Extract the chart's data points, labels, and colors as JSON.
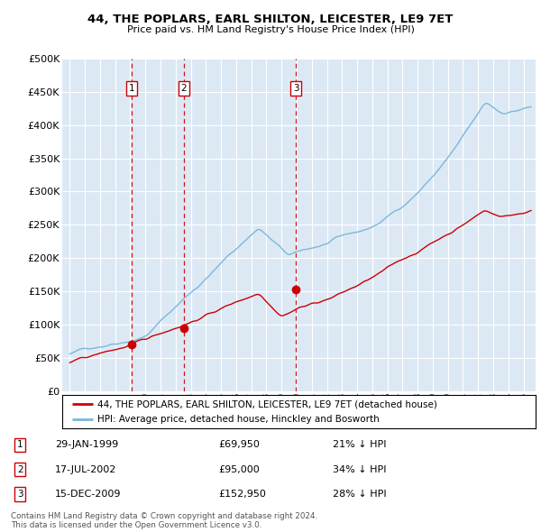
{
  "title": "44, THE POPLARS, EARL SHILTON, LEICESTER, LE9 7ET",
  "subtitle": "Price paid vs. HM Land Registry's House Price Index (HPI)",
  "hpi_color": "#7ab8d9",
  "price_color": "#cc0000",
  "background_color": "#ffffff",
  "plot_bg_color": "#dce9f5",
  "grid_color": "#ffffff",
  "ylim": [
    0,
    500000
  ],
  "yticks": [
    0,
    50000,
    100000,
    150000,
    200000,
    250000,
    300000,
    350000,
    400000,
    450000,
    500000
  ],
  "sales": [
    {
      "label": "1",
      "date": "29-JAN-1999",
      "price": 69950,
      "x_year": 1999.08,
      "hpi_pct": "21% ↓ HPI"
    },
    {
      "label": "2",
      "date": "17-JUL-2002",
      "price": 95000,
      "x_year": 2002.54,
      "hpi_pct": "34% ↓ HPI"
    },
    {
      "label": "3",
      "date": "15-DEC-2009",
      "price": 152950,
      "x_year": 2009.96,
      "hpi_pct": "28% ↓ HPI"
    }
  ],
  "legend_label_price": "44, THE POPLARS, EARL SHILTON, LEICESTER, LE9 7ET (detached house)",
  "legend_label_hpi": "HPI: Average price, detached house, Hinckley and Bosworth",
  "footer": "Contains HM Land Registry data © Crown copyright and database right 2024.\nThis data is licensed under the Open Government Licence v3.0.",
  "xmin": 1994.5,
  "xmax": 2025.8
}
